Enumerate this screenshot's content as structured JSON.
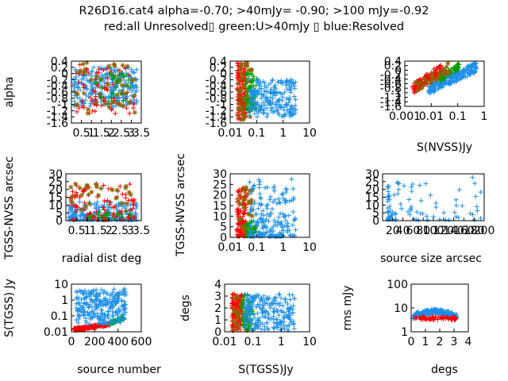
{
  "title_line1": "R26D16.cat4 alpha=-0.70; >40mJy= -0.90; >100 mJy=-0.92",
  "title_line2": "red:all Unresolved▯ green:U>40mJy ▯ blue:Resolved",
  "colors": {
    "red": "#ff0000",
    "green": "#009e00",
    "blue": "#1e90e6",
    "olive": "#8c6400"
  },
  "chart_data": [
    {
      "type": "scatter",
      "id": "p1",
      "xlabel": "",
      "ylabel": "alpha",
      "xlim": [
        0,
        3.5
      ],
      "ylim": [
        -1.6,
        0.4
      ],
      "xscale": "linear",
      "yscale": "linear",
      "xticks": [
        "0.5",
        "1",
        "1.5",
        "2",
        "2.5",
        "3",
        "3.5"
      ],
      "yticks": [
        "0.4",
        "0.2",
        "0",
        "-0.2",
        "-0.4",
        "-0.6",
        "-0.8",
        "-1",
        "-1.2",
        "-1.4",
        "-1.6"
      ],
      "clouds": [
        {
          "color": "blue",
          "marker": "+",
          "n": 260,
          "x": [
            0.1,
            3.3
          ],
          "y": [
            -1.1,
            0.2
          ],
          "seed": 11
        },
        {
          "color": "red",
          "marker": "+",
          "n": 70,
          "x": [
            0.2,
            3.2
          ],
          "y": [
            -1.3,
            0.3
          ],
          "seed": 12
        },
        {
          "color": "olive",
          "marker": "*",
          "n": 45,
          "x": [
            0.2,
            3.2
          ],
          "y": [
            -1.3,
            0.35
          ],
          "seed": 13
        },
        {
          "color": "green",
          "marker": "+",
          "n": 30,
          "x": [
            1.2,
            3.0
          ],
          "y": [
            -0.9,
            0.0
          ],
          "seed": 14
        }
      ]
    },
    {
      "type": "scatter",
      "id": "p2",
      "xlabel": "",
      "ylabel": "",
      "xlim": [
        0.01,
        10
      ],
      "ylim": [
        -1.6,
        0.4
      ],
      "xscale": "log",
      "yscale": "linear",
      "xticks": [
        "0.01",
        "0.1",
        "1",
        "10"
      ],
      "yticks": [
        "0.4",
        "0.2",
        "0",
        "-0.2",
        "-0.4",
        "-0.6",
        "-0.8",
        "-1",
        "-1.2",
        "-1.4",
        "-1.6"
      ],
      "clouds": [
        {
          "color": "red",
          "marker": "+",
          "n": 120,
          "x": [
            0.018,
            0.04
          ],
          "y": [
            -1.5,
            0.35
          ],
          "seed": 21
        },
        {
          "color": "olive",
          "marker": "*",
          "n": 50,
          "x": [
            0.02,
            0.07
          ],
          "y": [
            -1.5,
            0.35
          ],
          "seed": 22
        },
        {
          "color": "green",
          "marker": "+",
          "n": 60,
          "x": [
            0.04,
            0.1
          ],
          "y": [
            -1.2,
            0.1
          ],
          "seed": 23
        },
        {
          "color": "blue",
          "marker": "+",
          "n": 220,
          "x": [
            0.05,
            3.0
          ],
          "y": [
            -1.4,
            -0.2
          ],
          "seed": 24
        }
      ]
    },
    {
      "type": "scatter",
      "id": "p3",
      "xlabel": "S(NVSS)Jy",
      "ylabel": "",
      "xlim": [
        0.001,
        1
      ],
      "ylim": [
        -1.6,
        0.4
      ],
      "xscale": "log",
      "yscale": "linear",
      "xticks": [
        "0.001",
        "0.01",
        "0.1",
        "1"
      ],
      "yticks": [
        "0.4",
        "0.2",
        "0",
        "-0.2",
        "-0.4",
        "-0.6",
        "-0.8",
        "-1",
        "-1.2",
        "-1.4",
        "-1.6"
      ],
      "clouds": [
        {
          "color": "blue",
          "marker": "+",
          "n": 220,
          "x": [
            0.008,
            0.5
          ],
          "y": [
            -1.0,
            0.3
          ],
          "seed": 31,
          "trend": true
        },
        {
          "color": "red",
          "marker": "+",
          "n": 120,
          "x": [
            0.002,
            0.03
          ],
          "y": [
            -1.0,
            0.3
          ],
          "seed": 32,
          "trend": true
        },
        {
          "color": "green",
          "marker": "+",
          "n": 60,
          "x": [
            0.02,
            0.12
          ],
          "y": [
            -0.5,
            0.3
          ],
          "seed": 33,
          "trend": true
        },
        {
          "color": "olive",
          "marker": "*",
          "n": 30,
          "x": [
            0.002,
            0.05
          ],
          "y": [
            -1.0,
            0.3
          ],
          "seed": 34,
          "trend": true
        }
      ]
    },
    {
      "type": "scatter",
      "id": "p4",
      "xlabel": "radial dist deg",
      "ylabel": "TGSS-NVSS arcsec",
      "xlim": [
        0,
        3.5
      ],
      "ylim": [
        0,
        30
      ],
      "xscale": "linear",
      "yscale": "linear",
      "xticks": [
        "0.5",
        "1",
        "1.5",
        "2",
        "2.5",
        "3",
        "3.5"
      ],
      "yticks": [
        "30",
        "25",
        "20",
        "15",
        "10",
        "5",
        "0"
      ],
      "clouds": [
        {
          "color": "blue",
          "marker": "+",
          "n": 220,
          "x": [
            0.1,
            3.3
          ],
          "y": [
            0.5,
            12
          ],
          "seed": 41,
          "skew": 2.2
        },
        {
          "color": "red",
          "marker": "+",
          "n": 90,
          "x": [
            0.2,
            3.2
          ],
          "y": [
            0.5,
            24
          ],
          "seed": 42,
          "skew": 1.6
        },
        {
          "color": "olive",
          "marker": "*",
          "n": 30,
          "x": [
            0.2,
            3.2
          ],
          "y": [
            2,
            24
          ],
          "seed": 43
        },
        {
          "color": "green",
          "marker": "+",
          "n": 20,
          "x": [
            1.0,
            3.0
          ],
          "y": [
            0.5,
            6
          ],
          "seed": 44
        }
      ]
    },
    {
      "type": "scatter",
      "id": "p5",
      "xlabel": "",
      "ylabel": "TGSS-NVSS arcsec",
      "xlim": [
        0.01,
        10
      ],
      "ylim": [
        0,
        30
      ],
      "xscale": "log",
      "yscale": "linear",
      "xticks": [
        "0.01",
        "0.1",
        "1",
        "10"
      ],
      "yticks": [
        "30",
        "25",
        "20",
        "15",
        "10",
        "5",
        "0"
      ],
      "clouds": [
        {
          "color": "red",
          "marker": "+",
          "n": 110,
          "x": [
            0.018,
            0.04
          ],
          "y": [
            0.5,
            24
          ],
          "seed": 51,
          "skew": 1.5
        },
        {
          "color": "olive",
          "marker": "*",
          "n": 30,
          "x": [
            0.02,
            0.07
          ],
          "y": [
            1,
            24
          ],
          "seed": 52
        },
        {
          "color": "green",
          "marker": "+",
          "n": 50,
          "x": [
            0.04,
            0.1
          ],
          "y": [
            0.5,
            8
          ],
          "seed": 53,
          "skew": 1.5
        },
        {
          "color": "blue",
          "marker": "+",
          "n": 200,
          "x": [
            0.05,
            3.0
          ],
          "y": [
            0.5,
            28
          ],
          "seed": 54,
          "skew": 2.5
        }
      ]
    },
    {
      "type": "scatter",
      "id": "p6",
      "xlabel": "source size arcsec",
      "ylabel": "",
      "xlim": [
        0,
        200
      ],
      "ylim": [
        0,
        30
      ],
      "xscale": "linear",
      "yscale": "linear",
      "xticks": [
        "20",
        "40",
        "60",
        "80",
        "100",
        "120",
        "140",
        "160",
        "180",
        "200"
      ],
      "xticks_overlap": true,
      "yticks": [
        "30",
        "25",
        "20",
        "15",
        "10",
        "5",
        "0"
      ],
      "clouds": [
        {
          "color": "blue",
          "marker": "+",
          "n": 90,
          "x": [
            10,
            200
          ],
          "y": [
            0.5,
            28
          ],
          "seed": 61,
          "skewx": 2.5,
          "skew": 2.0
        }
      ]
    },
    {
      "type": "scatter",
      "id": "p7",
      "xlabel": "source number",
      "ylabel": "S(TGSS) Jy",
      "xlim": [
        0,
        600
      ],
      "ylim": [
        0.01,
        10
      ],
      "xscale": "linear",
      "yscale": "log",
      "xticks": [
        "0",
        "200",
        "400",
        "600"
      ],
      "yticks": [
        "10",
        "1",
        "0.1",
        "0.01"
      ],
      "clouds": [
        {
          "color": "red",
          "marker": "+",
          "n": 170,
          "x": [
            20,
            330
          ],
          "y": [
            0.012,
            0.035
          ],
          "seed": 71,
          "trend": true
        },
        {
          "color": "green",
          "marker": "+",
          "n": 60,
          "x": [
            330,
            450
          ],
          "y": [
            0.03,
            0.09
          ],
          "seed": 72,
          "trend": true
        },
        {
          "color": "blue",
          "marker": "+",
          "n": 260,
          "x": [
            40,
            470
          ],
          "y": [
            0.03,
            5
          ],
          "seed": 73
        }
      ]
    },
    {
      "type": "scatter",
      "id": "p8",
      "xlabel": "S(TGSS)Jy",
      "ylabel": "degs",
      "xlim": [
        0.01,
        10
      ],
      "ylim": [
        0,
        4
      ],
      "xscale": "log",
      "yscale": "linear",
      "xticks": [
        "0.01",
        "0.1",
        "1",
        "10"
      ],
      "yticks": [
        "4",
        "3",
        "2",
        "1",
        "0"
      ],
      "clouds": [
        {
          "color": "red",
          "marker": "+",
          "n": 120,
          "x": [
            0.018,
            0.04
          ],
          "y": [
            0.1,
            3.2
          ],
          "seed": 81
        },
        {
          "color": "olive",
          "marker": "*",
          "n": 30,
          "x": [
            0.02,
            0.07
          ],
          "y": [
            0.1,
            3.2
          ],
          "seed": 82
        },
        {
          "color": "green",
          "marker": "+",
          "n": 60,
          "x": [
            0.04,
            0.1
          ],
          "y": [
            0.1,
            3.2
          ],
          "seed": 83
        },
        {
          "color": "blue",
          "marker": "+",
          "n": 220,
          "x": [
            0.05,
            3.0
          ],
          "y": [
            0.1,
            3.2
          ],
          "seed": 84
        }
      ]
    },
    {
      "type": "scatter",
      "id": "p9",
      "xlabel": "degs",
      "ylabel": "rms mJy",
      "xlim": [
        0,
        4
      ],
      "ylim": [
        1,
        100
      ],
      "xscale": "linear",
      "yscale": "log",
      "xticks": [
        "0",
        "1",
        "2",
        "3",
        "4"
      ],
      "yticks": [
        "100",
        "10",
        "1"
      ],
      "clouds": [
        {
          "color": "blue",
          "marker": "+",
          "n": 260,
          "x": [
            0.1,
            3.2
          ],
          "y": [
            3.5,
            9
          ],
          "seed": 91,
          "hump": true
        },
        {
          "color": "red",
          "marker": "+",
          "n": 70,
          "x": [
            0.1,
            3.2
          ],
          "y": [
            3.2,
            4.2
          ],
          "seed": 92
        }
      ]
    }
  ]
}
